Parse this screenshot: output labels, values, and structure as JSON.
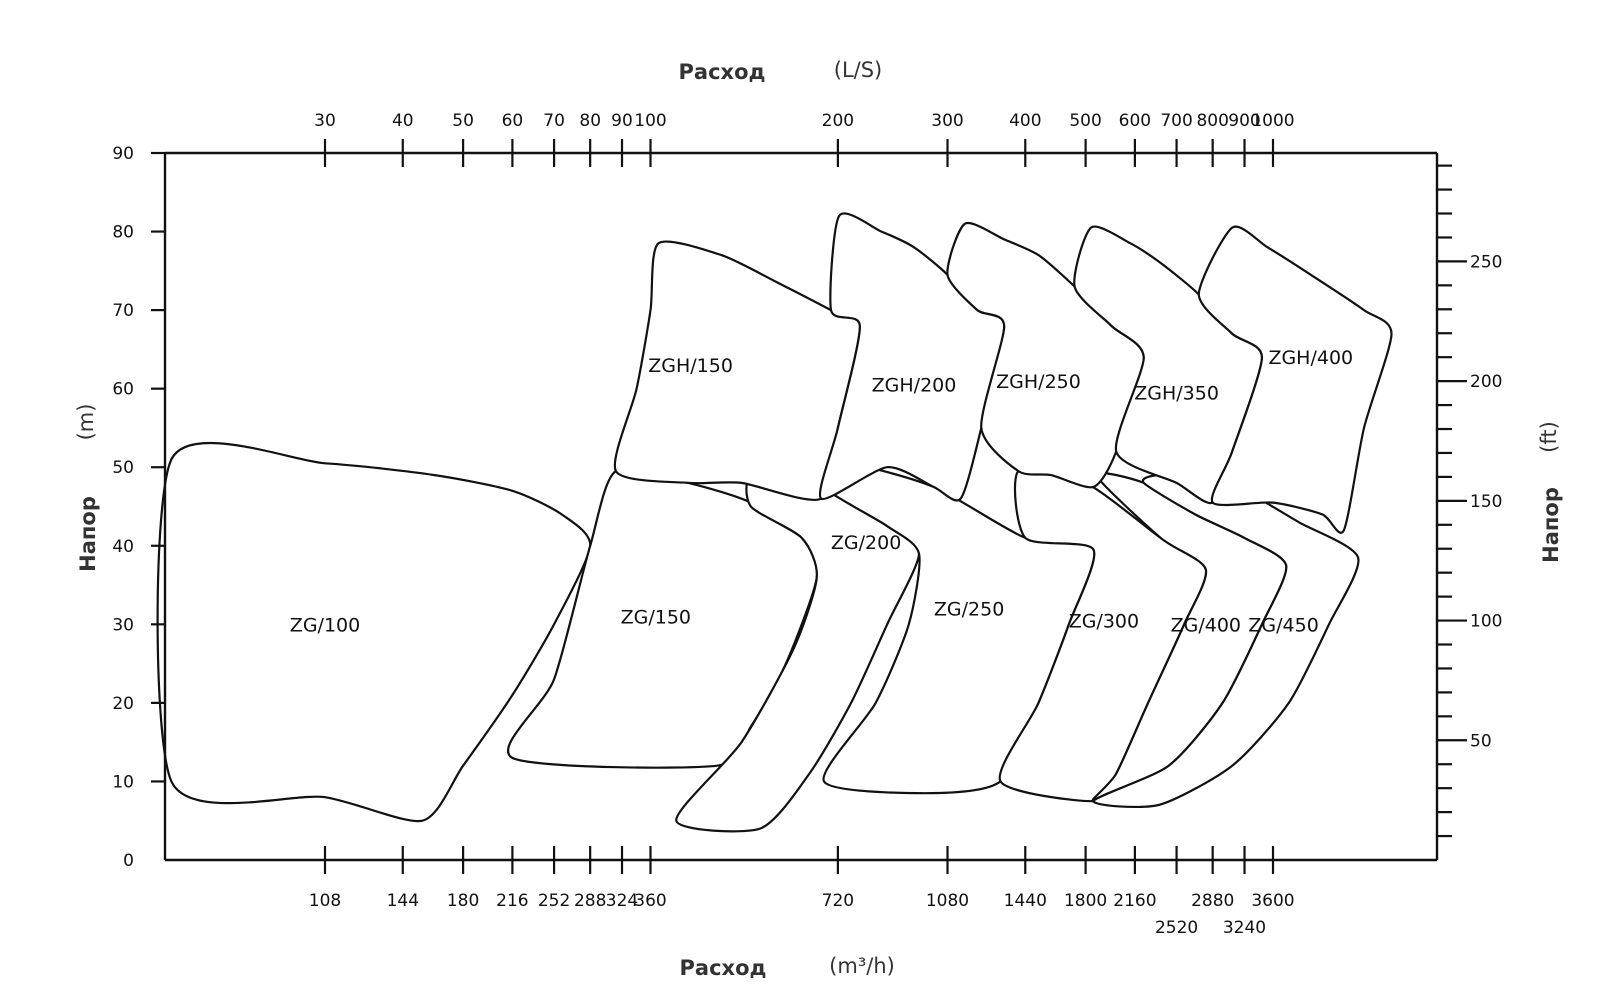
{
  "chart_data": {
    "type": "area",
    "x_top_axis": {
      "title": "Расход",
      "unit": "(L/S)",
      "scale": "log",
      "ticks": [
        30,
        40,
        50,
        60,
        70,
        80,
        90,
        100,
        200,
        300,
        400,
        500,
        600,
        700,
        800,
        900,
        1000
      ],
      "tick_labels": [
        "30",
        "40",
        "50",
        "60",
        "70",
        "80",
        "90",
        "100",
        "200",
        "300",
        "400",
        "500",
        "600",
        "700",
        "800",
        "900",
        "1000"
      ]
    },
    "x_bottom_axis": {
      "title": "Расход",
      "unit": "(m³/h)",
      "scale": "log",
      "ticks": [
        108,
        144,
        180,
        216,
        252,
        288,
        324,
        360,
        720,
        1080,
        1440,
        1800,
        2160,
        2520,
        2880,
        3240,
        3600
      ],
      "tick_labels": [
        "108",
        "144",
        "180",
        "216",
        "252",
        "288",
        "324",
        "360",
        "720",
        "1080",
        "1440",
        "1800",
        "2160",
        "2520",
        "2880",
        "3240",
        "3600"
      ]
    },
    "y_left_axis": {
      "title": "Напор",
      "unit": "(m)",
      "range": [
        0,
        90
      ],
      "ticks": [
        0,
        10,
        20,
        30,
        40,
        50,
        60,
        70,
        80,
        90
      ],
      "tick_labels": [
        "0",
        "10",
        "20",
        "30",
        "40",
        "50",
        "60",
        "70",
        "80",
        "90"
      ]
    },
    "y_right_axis": {
      "title": "Напор",
      "unit": "(ft)",
      "labeled_ticks": [
        50,
        100,
        150,
        200,
        250
      ],
      "tick_labels": [
        "50",
        "100",
        "150",
        "200",
        "250"
      ]
    },
    "x_range_ls": [
      17,
      2450
    ],
    "grid": false,
    "series": [
      {
        "name": "ZG/100",
        "label_pos": [
          30,
          30
        ],
        "points": [
          [
            17,
            51
          ],
          [
            30,
            50.5
          ],
          [
            45,
            49
          ],
          [
            60,
            47
          ],
          [
            72,
            44
          ],
          [
            80,
            40
          ],
          [
            70,
            30
          ],
          [
            60,
            21
          ],
          [
            50,
            12
          ],
          [
            43,
            5
          ],
          [
            30,
            8
          ],
          [
            17,
            10
          ]
        ]
      },
      {
        "name": "ZG/150",
        "label_pos": [
          102,
          31
        ],
        "points": [
          [
            88,
            49.5
          ],
          [
            115,
            48
          ],
          [
            145,
            45.5
          ],
          [
            175,
            41
          ],
          [
            185,
            36
          ],
          [
            165,
            25
          ],
          [
            145,
            17
          ],
          [
            128,
            12
          ],
          [
            60,
            13
          ],
          [
            70,
            23
          ],
          [
            80,
            40
          ]
        ]
      },
      {
        "name": "ZG/200",
        "label_pos": [
          222,
          40.5
        ],
        "points": [
          [
            146,
            49
          ],
          [
            190,
            47.5
          ],
          [
            240,
            42.5
          ],
          [
            270,
            39
          ],
          [
            240,
            30
          ],
          [
            210,
            20
          ],
          [
            180,
            11
          ],
          [
            150,
            4
          ],
          [
            110,
            5
          ],
          [
            140,
            15
          ],
          [
            170,
            27
          ],
          [
            185,
            36
          ],
          [
            175,
            41
          ],
          [
            145,
            45
          ]
        ]
      },
      {
        "name": "ZG/250",
        "label_pos": [
          325,
          32
        ],
        "points": [
          [
            205,
            50.5
          ],
          [
            285,
            47.5
          ],
          [
            400,
            41
          ],
          [
            515,
            39.5
          ],
          [
            470,
            30
          ],
          [
            420,
            20
          ],
          [
            365,
            10
          ],
          [
            276,
            8.5
          ],
          [
            190,
            10
          ],
          [
            230,
            20
          ],
          [
            260,
            30
          ],
          [
            270,
            39
          ],
          [
            240,
            42.5
          ],
          [
            190,
            47.5
          ]
        ]
      },
      {
        "name": "ZG/300",
        "label_pos": [
          535,
          30.5
        ],
        "points": [
          [
            390,
            49.5
          ],
          [
            500,
            48
          ],
          [
            660,
            41
          ],
          [
            780,
            37
          ],
          [
            720,
            30
          ],
          [
            630,
            20
          ],
          [
            560,
            11
          ],
          [
            515,
            7.5
          ],
          [
            365,
            10
          ],
          [
            420,
            20
          ],
          [
            470,
            30
          ],
          [
            515,
            39.5
          ],
          [
            400,
            41
          ]
        ]
      },
      {
        "name": "ZG/400",
        "label_pos": [
          780,
          30
        ],
        "points": [
          [
            520,
            49
          ],
          [
            620,
            48
          ],
          [
            750,
            44
          ],
          [
            900,
            41
          ],
          [
            1050,
            37.5
          ],
          [
            960,
            30
          ],
          [
            830,
            20
          ],
          [
            680,
            12
          ],
          [
            515,
            7.5
          ],
          [
            560,
            11
          ],
          [
            630,
            20
          ],
          [
            720,
            30
          ],
          [
            780,
            37
          ],
          [
            660,
            41
          ]
        ]
      },
      {
        "name": "ZG/450",
        "label_pos": [
          1040,
          30
        ],
        "points": [
          [
            655,
            49
          ],
          [
            780,
            48.5
          ],
          [
            900,
            47
          ],
          [
            1100,
            43
          ],
          [
            1370,
            38.5
          ],
          [
            1230,
            30
          ],
          [
            1060,
            20
          ],
          [
            860,
            12
          ],
          [
            655,
            7
          ],
          [
            515,
            7.5
          ],
          [
            680,
            12
          ],
          [
            830,
            20
          ],
          [
            960,
            30
          ],
          [
            1050,
            37.5
          ],
          [
            900,
            41
          ],
          [
            750,
            44
          ],
          [
            620,
            48
          ]
        ]
      },
      {
        "name": "ZGH/150",
        "label_pos": [
          116,
          63
        ],
        "points": [
          [
            103,
            78.5
          ],
          [
            130,
            77
          ],
          [
            160,
            73.5
          ],
          [
            195,
            70
          ],
          [
            217,
            68
          ],
          [
            200,
            55
          ],
          [
            188,
            46
          ],
          [
            140,
            48
          ],
          [
            115,
            48
          ],
          [
            88,
            49.5
          ],
          [
            95,
            60
          ],
          [
            100,
            70
          ]
        ]
      },
      {
        "name": "ZGH/200",
        "label_pos": [
          265,
          60.5
        ],
        "points": [
          [
            201,
            82
          ],
          [
            235,
            80
          ],
          [
            265,
            78
          ],
          [
            300,
            74.5
          ],
          [
            335,
            70
          ],
          [
            370,
            68
          ],
          [
            340,
            55
          ],
          [
            315,
            46
          ],
          [
            285,
            47.5
          ],
          [
            240,
            50
          ],
          [
            188,
            46
          ],
          [
            200,
            55
          ],
          [
            217,
            68
          ],
          [
            195,
            70
          ]
        ]
      },
      {
        "name": "ZGH/250",
        "label_pos": [
          420,
          61
        ],
        "points": [
          [
            320,
            81
          ],
          [
            370,
            79
          ],
          [
            420,
            77
          ],
          [
            480,
            73
          ],
          [
            550,
            68
          ],
          [
            620,
            64
          ],
          [
            560,
            52
          ],
          [
            515,
            47.5
          ],
          [
            440,
            49
          ],
          [
            390,
            49.5
          ],
          [
            340,
            55
          ],
          [
            370,
            68
          ],
          [
            335,
            70
          ],
          [
            300,
            74.5
          ]
        ]
      },
      {
        "name": "ZGH/350",
        "label_pos": [
          700,
          59.5
        ],
        "points": [
          [
            510,
            80.5
          ],
          [
            590,
            78.5
          ],
          [
            660,
            76
          ],
          [
            760,
            72
          ],
          [
            860,
            67
          ],
          [
            960,
            64
          ],
          [
            860,
            52
          ],
          [
            800,
            45.5
          ],
          [
            700,
            48
          ],
          [
            560,
            52
          ],
          [
            620,
            64
          ],
          [
            550,
            68
          ],
          [
            480,
            73
          ]
        ]
      },
      {
        "name": "ZGH/400",
        "label_pos": [
          1150,
          64
        ],
        "points": [
          [
            860,
            80.5
          ],
          [
            980,
            78
          ],
          [
            1150,
            74.5
          ],
          [
            1400,
            70
          ],
          [
            1550,
            67
          ],
          [
            1400,
            55
          ],
          [
            1300,
            42
          ],
          [
            1200,
            44
          ],
          [
            1000,
            45.5
          ],
          [
            800,
            45.5
          ],
          [
            860,
            52
          ],
          [
            960,
            64
          ],
          [
            860,
            67
          ],
          [
            760,
            72
          ]
        ]
      }
    ]
  }
}
